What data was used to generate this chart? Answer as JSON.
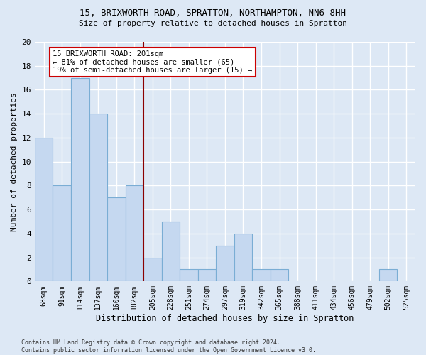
{
  "title1": "15, BRIXWORTH ROAD, SPRATTON, NORTHAMPTON, NN6 8HH",
  "title2": "Size of property relative to detached houses in Spratton",
  "xlabel": "Distribution of detached houses by size in Spratton",
  "ylabel": "Number of detached properties",
  "categories": [
    "68sqm",
    "91sqm",
    "114sqm",
    "137sqm",
    "160sqm",
    "182sqm",
    "205sqm",
    "228sqm",
    "251sqm",
    "274sqm",
    "297sqm",
    "319sqm",
    "342sqm",
    "365sqm",
    "388sqm",
    "411sqm",
    "434sqm",
    "456sqm",
    "479sqm",
    "502sqm",
    "525sqm"
  ],
  "values": [
    12,
    8,
    17,
    14,
    7,
    8,
    2,
    5,
    1,
    1,
    3,
    4,
    1,
    1,
    0,
    0,
    0,
    0,
    0,
    1,
    0
  ],
  "bar_color": "#c5d8f0",
  "bar_edge_color": "#7aadd4",
  "annotation_title": "15 BRIXWORTH ROAD: 201sqm",
  "annotation_line1": "← 81% of detached houses are smaller (65)",
  "annotation_line2": "19% of semi-detached houses are larger (15) →",
  "annotation_box_color": "#ffffff",
  "annotation_box_edge": "#cc0000",
  "vline_color": "#8b0000",
  "vline_x_index": 6,
  "ylim": [
    0,
    20
  ],
  "yticks": [
    0,
    2,
    4,
    6,
    8,
    10,
    12,
    14,
    16,
    18,
    20
  ],
  "footer1": "Contains HM Land Registry data © Crown copyright and database right 2024.",
  "footer2": "Contains public sector information licensed under the Open Government Licence v3.0.",
  "bg_color": "#dde8f5",
  "plot_bg_color": "#dde8f5",
  "grid_color": "#ffffff"
}
